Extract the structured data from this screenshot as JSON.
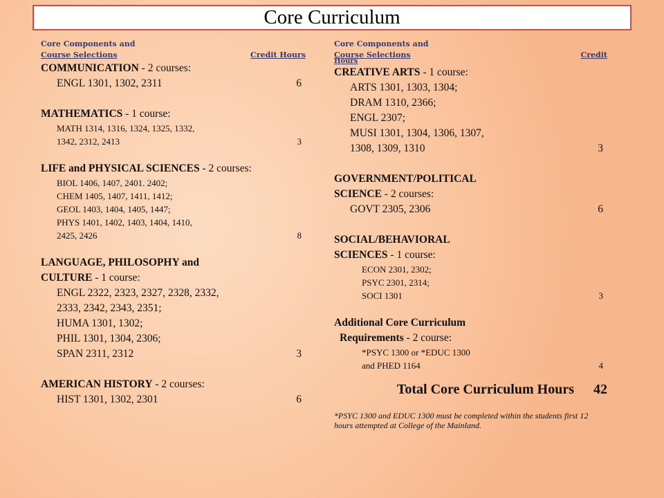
{
  "title": "Core Curriculum",
  "header": {
    "line1": "Core Components and",
    "line2": "Course Selections",
    "credit_left": "Credit Hours",
    "credit_right_1": "Credit",
    "credit_right_2": "Hours"
  },
  "left": {
    "communication": {
      "name": "COMMUNICATION",
      "suffix": " - 2 courses:",
      "courses": "ENGL 1301, 1302, 2311",
      "hours": "6"
    },
    "mathematics": {
      "name": "MATHEMATICS",
      "suffix": " - 1 course:",
      "courses": [
        "MATH 1314, 1316, 1324, 1325, 1332,",
        "1342, 2312, 2413"
      ],
      "hours": "3"
    },
    "life_physical": {
      "name": "LIFE and PHYSICAL SCIENCES",
      "suffix": " - 2 courses:",
      "courses": [
        "BIOL 1406, 1407, 2401. 2402;",
        "CHEM 1405, 1407, 1411, 1412;",
        "GEOL 1403, 1404, 1405, 1447;",
        "PHYS 1401, 1402, 1403, 1404, 1410,",
        "2425, 2426"
      ],
      "hours": "8"
    },
    "language": {
      "name1": "LANGUAGE, PHILOSOPHY and",
      "name2": "CULTURE",
      "suffix": " - 1 course:",
      "courses": [
        "ENGL 2322, 2323, 2327, 2328, 2332,",
        "2333, 2342, 2343, 2351;",
        "HUMA 1301, 1302;",
        "PHIL 1301, 1304, 2306;",
        "SPAN 2311, 2312"
      ],
      "hours": "3"
    },
    "american_history": {
      "name": "AMERICAN HISTORY",
      "suffix": " - 2 courses:",
      "courses": "HIST 1301, 1302, 2301",
      "hours": "6"
    }
  },
  "right": {
    "creative_arts": {
      "name": "CREATIVE ARTS",
      "suffix": " - 1 course:",
      "courses": [
        "ARTS 1301, 1303, 1304;",
        "DRAM 1310, 2366;",
        "ENGL 2307;",
        "MUSI 1301, 1304, 1306, 1307,",
        "1308, 1309, 1310"
      ],
      "hours": "3"
    },
    "government": {
      "name1": "GOVERNMENT/POLITICAL",
      "name2": "SCIENCE",
      "suffix": " - 2 courses:",
      "courses": "GOVT 2305, 2306",
      "hours": "6"
    },
    "social": {
      "name1": "SOCIAL/BEHAVIORAL",
      "name2": "SCIENCES",
      "suffix": " - 1 course:",
      "courses": [
        "ECON 2301, 2302;",
        "PSYC 2301, 2314;",
        "SOCI 1301"
      ],
      "hours": "3"
    },
    "additional": {
      "name1": "Additional Core Curriculum",
      "name2": "Requirements",
      "suffix": " - 2 course:",
      "courses": [
        "*PSYC 1300 or *EDUC 1300",
        "and PHED 1164"
      ],
      "hours": "4"
    },
    "total_label": "Total Core Curriculum Hours",
    "total_value": "42",
    "footnote_mark": "*",
    "footnote": "PSYC 1300 and EDUC 1300 must be completed within the students first 12 hours attempted at College of the Mainland."
  }
}
